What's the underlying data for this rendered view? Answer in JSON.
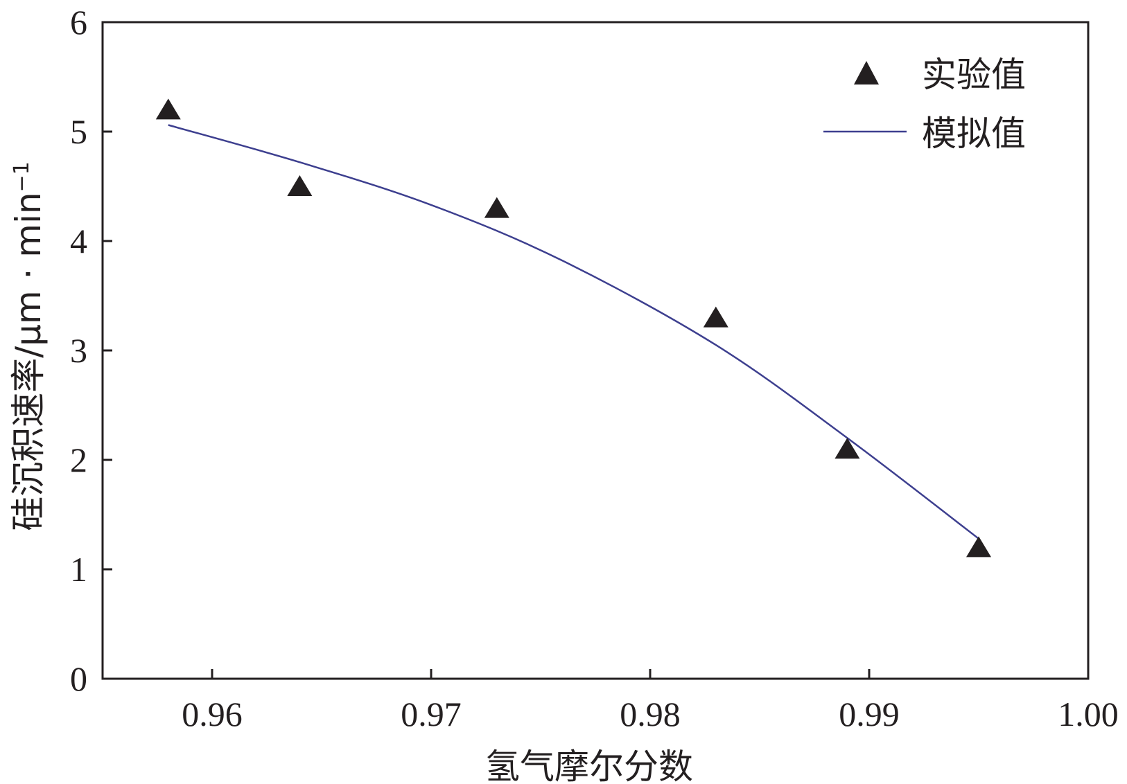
{
  "chart_data": {
    "type": "scatter",
    "xlabel": "氢气摩尔分数",
    "ylabel": "硅沉积速率/μm · min",
    "ylabel_superscript": "−1",
    "xlim": [
      0.955,
      1.0
    ],
    "ylim": [
      0,
      6
    ],
    "x_ticks": [
      0.96,
      0.97,
      0.98,
      0.99,
      1.0
    ],
    "x_tick_labels": [
      "0.96",
      "0.97",
      "0.98",
      "0.99",
      "1.00"
    ],
    "y_ticks": [
      0,
      1,
      2,
      3,
      4,
      5,
      6
    ],
    "y_tick_labels": [
      "0",
      "1",
      "2",
      "3",
      "4",
      "5",
      "6"
    ],
    "grid": false,
    "legend_position": "top-right",
    "series": [
      {
        "name": "实验值",
        "kind": "scatter",
        "marker": "triangle",
        "color": "#231f20",
        "x": [
          0.958,
          0.964,
          0.973,
          0.983,
          0.989,
          0.995
        ],
        "y": [
          5.2,
          4.5,
          4.3,
          3.3,
          2.1,
          1.2
        ]
      },
      {
        "name": "模拟值",
        "kind": "line",
        "color": "#3d3f8f",
        "x": [
          0.958,
          0.964,
          0.97,
          0.976,
          0.983,
          0.989,
          0.995
        ],
        "y": [
          5.06,
          4.72,
          4.33,
          3.82,
          3.05,
          2.2,
          1.28
        ]
      }
    ]
  }
}
